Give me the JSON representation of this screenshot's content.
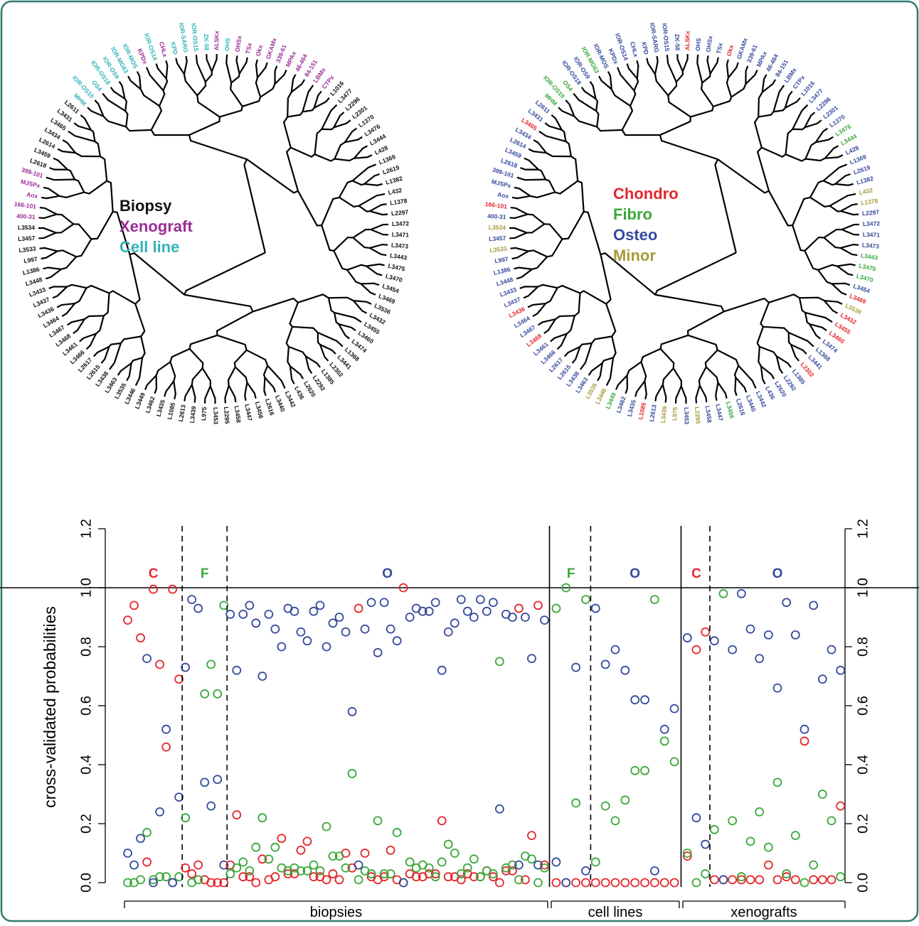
{
  "dendrograms": {
    "legend_left": [
      {
        "label": "Biopsy",
        "color": "#111111"
      },
      {
        "label": "Xenograft",
        "color": "#9b2c96"
      },
      {
        "label": "Cell line",
        "color": "#33b3b8"
      }
    ],
    "legend_right": [
      {
        "label": "Chondro",
        "color": "#e3262b"
      },
      {
        "label": "Fibro",
        "color": "#3aa83a"
      },
      {
        "label": "Osteo",
        "color": "#354a9c"
      },
      {
        "label": "Minor",
        "color": "#a69b3c"
      }
    ],
    "leaves": [
      [
        "MHM",
        "#33b3b8",
        "#3aa83a"
      ],
      [
        "IOR-OS10",
        "#33b3b8",
        "#3aa83a"
      ],
      [
        "OS4",
        "#33b3b8",
        "#3aa83a"
      ],
      [
        "IOR-OS18",
        "#33b3b8",
        "#354a9c"
      ],
      [
        "IOR-OS9",
        "#33b3b8",
        "#354a9c"
      ],
      [
        "IOR-MG63",
        "#33b3b8",
        "#3aa83a"
      ],
      [
        "IOR-MOS",
        "#33b3b8",
        "#354a9c"
      ],
      [
        "KPDx",
        "#9b2c96",
        "#354a9c"
      ],
      [
        "IOR-OS14",
        "#33b3b8",
        "#354a9c"
      ],
      [
        "CHLx",
        "#9b2c96",
        "#354a9c"
      ],
      [
        "KPD",
        "#33b3b8",
        "#354a9c"
      ],
      [
        "IOR-SARG",
        "#33b3b8",
        "#354a9c"
      ],
      [
        "IOR-OS15",
        "#33b3b8",
        "#354a9c"
      ],
      [
        "ZK-58",
        "#33b3b8",
        "#354a9c"
      ],
      [
        "ALSKx",
        "#9b2c96",
        "#e3262b"
      ],
      [
        "OHS",
        "#33b3b8",
        "#354a9c"
      ],
      [
        "OHSx",
        "#9b2c96",
        "#354a9c"
      ],
      [
        "TSx",
        "#9b2c96",
        "#354a9c"
      ],
      [
        "Okx",
        "#9b2c96",
        "#e3262b"
      ],
      [
        "GKAMx",
        "#9b2c96",
        "#354a9c"
      ],
      [
        "339-61",
        "#9b2c96",
        "#354a9c"
      ],
      [
        "MPAx",
        "#9b2c96",
        "#354a9c"
      ],
      [
        "46-464",
        "#9b2c96",
        "#354a9c"
      ],
      [
        "84-151",
        "#9b2c96",
        "#354a9c"
      ],
      [
        "LBMx",
        "#9b2c96",
        "#354a9c"
      ],
      [
        "CTPx",
        "#9b2c96",
        "#354a9c"
      ],
      [
        "L1016",
        "#111111",
        "#354a9c"
      ],
      [
        "L3477",
        "#111111",
        "#354a9c"
      ],
      [
        "L2296",
        "#111111",
        "#354a9c"
      ],
      [
        "L2301",
        "#111111",
        "#354a9c"
      ],
      [
        "L1370",
        "#111111",
        "#354a9c"
      ],
      [
        "L3476",
        "#111111",
        "#3aa83a"
      ],
      [
        "L3444",
        "#111111",
        "#3aa83a"
      ],
      [
        "L428",
        "#111111",
        "#354a9c"
      ],
      [
        "L1369",
        "#111111",
        "#354a9c"
      ],
      [
        "L2619",
        "#111111",
        "#354a9c"
      ],
      [
        "L1382",
        "#111111",
        "#354a9c"
      ],
      [
        "L432",
        "#111111",
        "#a69b3c"
      ],
      [
        "L1378",
        "#111111",
        "#a69b3c"
      ],
      [
        "L2297",
        "#111111",
        "#354a9c"
      ],
      [
        "L3472",
        "#111111",
        "#354a9c"
      ],
      [
        "L3471",
        "#111111",
        "#354a9c"
      ],
      [
        "L3473",
        "#111111",
        "#354a9c"
      ],
      [
        "L3443",
        "#111111",
        "#3aa83a"
      ],
      [
        "L3475",
        "#111111",
        "#3aa83a"
      ],
      [
        "L3470",
        "#111111",
        "#3aa83a"
      ],
      [
        "L3454",
        "#111111",
        "#354a9c"
      ],
      [
        "L3469",
        "#111111",
        "#e3262b"
      ],
      [
        "L3536",
        "#111111",
        "#a69b3c"
      ],
      [
        "L3432",
        "#111111",
        "#e3262b"
      ],
      [
        "L3455",
        "#111111",
        "#e3262b"
      ],
      [
        "L3460",
        "#111111",
        "#e3262b"
      ],
      [
        "L3474",
        "#111111",
        "#354a9c"
      ],
      [
        "L1368",
        "#111111",
        "#354a9c"
      ],
      [
        "L3441",
        "#111111",
        "#354a9c"
      ],
      [
        "L2302",
        "#111111",
        "#e3262b"
      ],
      [
        "L1385",
        "#111111",
        "#354a9c"
      ],
      [
        "L2292",
        "#111111",
        "#354a9c"
      ],
      [
        "L2620",
        "#111111",
        "#354a9c"
      ],
      [
        "L436",
        "#111111",
        "#354a9c"
      ],
      [
        "L3442",
        "#111111",
        "#354a9c"
      ],
      [
        "L3440",
        "#111111",
        "#354a9c"
      ],
      [
        "L2616",
        "#111111",
        "#354a9c"
      ],
      [
        "L3456",
        "#111111",
        "#3aa83a"
      ],
      [
        "L3447",
        "#111111",
        "#354a9c"
      ],
      [
        "L3458",
        "#111111",
        "#354a9c"
      ],
      [
        "L2295",
        "#111111",
        "#a69b3c"
      ],
      [
        "L3453",
        "#111111",
        "#354a9c"
      ],
      [
        "L975",
        "#111111",
        "#a69b3c"
      ],
      [
        "L3439",
        "#111111",
        "#a69b3c"
      ],
      [
        "L2613",
        "#111111",
        "#354a9c"
      ],
      [
        "L1085",
        "#111111",
        "#e3262b"
      ],
      [
        "L3435",
        "#111111",
        "#354a9c"
      ],
      [
        "L3462",
        "#111111",
        "#354a9c"
      ],
      [
        "L3449",
        "#111111",
        "#3aa83a"
      ],
      [
        "L3446",
        "#111111",
        "#a69b3c"
      ],
      [
        "L3535",
        "#111111",
        "#a69b3c"
      ],
      [
        "L3463",
        "#111111",
        "#354a9c"
      ],
      [
        "L3438",
        "#111111",
        "#354a9c"
      ],
      [
        "L2615",
        "#111111",
        "#354a9c"
      ],
      [
        "L2617",
        "#111111",
        "#354a9c"
      ],
      [
        "L3466",
        "#111111",
        "#354a9c"
      ],
      [
        "L3461",
        "#111111",
        "#354a9c"
      ],
      [
        "L3468",
        "#111111",
        "#e3262b"
      ],
      [
        "L3467",
        "#111111",
        "#354a9c"
      ],
      [
        "L3464",
        "#111111",
        "#354a9c"
      ],
      [
        "L3436",
        "#111111",
        "#e3262b"
      ],
      [
        "L3437",
        "#111111",
        "#354a9c"
      ],
      [
        "L3433",
        "#111111",
        "#354a9c"
      ],
      [
        "L3448",
        "#111111",
        "#354a9c"
      ],
      [
        "L1386",
        "#111111",
        "#354a9c"
      ],
      [
        "L997",
        "#111111",
        "#354a9c"
      ],
      [
        "L3533",
        "#111111",
        "#a69b3c"
      ],
      [
        "L3457",
        "#111111",
        "#354a9c"
      ],
      [
        "L3534",
        "#111111",
        "#a69b3c"
      ],
      [
        "400-31",
        "#9b2c96",
        "#354a9c"
      ],
      [
        "166-101",
        "#9b2c96",
        "#e3262b"
      ],
      [
        "Aox",
        "#9b2c96",
        "#354a9c"
      ],
      [
        "MJSPx",
        "#9b2c96",
        "#354a9c"
      ],
      [
        "399-101",
        "#9b2c96",
        "#354a9c"
      ],
      [
        "L2618",
        "#111111",
        "#354a9c"
      ],
      [
        "L3459",
        "#111111",
        "#354a9c"
      ],
      [
        "L2614",
        "#111111",
        "#354a9c"
      ],
      [
        "L3434",
        "#111111",
        "#354a9c"
      ],
      [
        "L3465",
        "#111111",
        "#e3262b"
      ],
      [
        "L3431",
        "#111111",
        "#354a9c"
      ],
      [
        "L2611",
        "#111111",
        "#354a9c"
      ]
    ]
  },
  "chart_data": {
    "type": "scatter",
    "y_label": "cross-validated probabilities",
    "ylim": [
      0,
      1.2
    ],
    "yticks": [
      {
        "value": 0,
        "label": "0.0"
      },
      0.2,
      0.4,
      0.6,
      0.8,
      {
        "value": 1,
        "label": "1.0"
      },
      1.2
    ],
    "reference_line": {
      "value": 1,
      "label": "1.0"
    },
    "sections": [
      {
        "label": "biopsies",
        "subsections": [
          {
            "label": "C",
            "color": "#e3262b",
            "series": [
              {
                "color": "#e3262b",
                "values": [
                  0.89,
                  0.94,
                  0.83,
                  0.07,
                  0.995,
                  0.74,
                  0.46,
                  0.995,
                  0.69
                ]
              },
              {
                "color": "#3aa83a",
                "values": [
                  0,
                  0,
                  0.01,
                  0.17,
                  0.01,
                  0.02,
                  0.02,
                  0,
                  0.02
                ]
              },
              {
                "color": "#354a9c",
                "values": [
                  0.1,
                  0.06,
                  0.15,
                  0.76,
                  0,
                  0.24,
                  0.52,
                  0,
                  0.29
                ]
              }
            ]
          },
          {
            "label": "F",
            "color": "#3aa83a",
            "series": [
              {
                "color": "#e3262b",
                "values": [
                  0.05,
                  0.03,
                  0.06,
                  0.01,
                  0,
                  0,
                  0
                ]
              },
              {
                "color": "#3aa83a",
                "values": [
                  0.22,
                  0,
                  0.01,
                  0.64,
                  0.74,
                  0.64,
                  0.94
                ]
              },
              {
                "color": "#354a9c",
                "values": [
                  0.73,
                  0.96,
                  0.93,
                  0.34,
                  0.26,
                  0.35,
                  0.06
                ]
              }
            ]
          },
          {
            "label": "O",
            "color": "#354a9c",
            "series": [
              {
                "color": "#e3262b",
                "values": [
                  0.06,
                  0.23,
                  0.02,
                  0.02,
                  0,
                  0.08,
                  0.01,
                  0.02,
                  0.15,
                  0.03,
                  0.03,
                  0.11,
                  0.14,
                  0.02,
                  0.02,
                  0.01,
                  0.03,
                  0.01,
                  0.1,
                  0.05,
                  0.93,
                  0.1,
                  0.02,
                  0.01,
                  0.02,
                  0.11,
                  0.01,
                  1,
                  0.03,
                  0.02,
                  0.02,
                  0.03,
                  0.03,
                  0.21,
                  0.02,
                  0.02,
                  0.01,
                  0.03,
                  0.02,
                  0.02,
                  0.04,
                  0.02,
                  0,
                  0.04,
                  0.04,
                  0.93,
                  0.01,
                  0.16,
                  0.94,
                  0.06
                ]
              },
              {
                "color": "#3aa83a",
                "values": [
                  0.03,
                  0.05,
                  0.07,
                  0.04,
                  0.12,
                  0.22,
                  0.08,
                  0.12,
                  0.05,
                  0.04,
                  0.05,
                  0.04,
                  0.04,
                  0.06,
                  0.04,
                  0.19,
                  0.09,
                  0.09,
                  0.05,
                  0.37,
                  0.01,
                  0.04,
                  0.03,
                  0.21,
                  0.03,
                  0.03,
                  0.17,
                  0,
                  0.07,
                  0.05,
                  0.06,
                  0.05,
                  0.02,
                  0.07,
                  0.13,
                  0.1,
                  0.03,
                  0.05,
                  0.08,
                  0.02,
                  0.04,
                  0.03,
                  0.75,
                  0.05,
                  0.06,
                  0.01,
                  0.09,
                  0.08,
                  0,
                  0.05
                ]
              },
              {
                "color": "#354a9c",
                "values": [
                  0.91,
                  0.72,
                  0.91,
                  0.94,
                  0.88,
                  0.7,
                  0.91,
                  0.86,
                  0.8,
                  0.93,
                  0.92,
                  0.85,
                  0.82,
                  0.92,
                  0.94,
                  0.8,
                  0.88,
                  0.9,
                  0.85,
                  0.58,
                  0.06,
                  0.86,
                  0.95,
                  0.78,
                  0.95,
                  0.86,
                  0.82,
                  0,
                  0.9,
                  0.93,
                  0.92,
                  0.92,
                  0.95,
                  0.72,
                  0.85,
                  0.88,
                  0.96,
                  0.92,
                  0.9,
                  0.96,
                  0.92,
                  0.95,
                  0.25,
                  0.91,
                  0.9,
                  0.06,
                  0.9,
                  0.76,
                  0.06,
                  0.89
                ]
              }
            ]
          }
        ]
      },
      {
        "label": "cell lines",
        "subsections": [
          {
            "label": "F",
            "color": "#3aa83a",
            "series": [
              {
                "color": "#e3262b",
                "values": [
                  0,
                  0,
                  0,
                  0
                ]
              },
              {
                "color": "#3aa83a",
                "values": [
                  0.93,
                  1,
                  0.27,
                  0.96
                ]
              },
              {
                "color": "#354a9c",
                "values": [
                  0.07,
                  0,
                  0.73,
                  0.04
                ]
              }
            ]
          },
          {
            "label": "O",
            "color": "#354a9c",
            "series": [
              {
                "color": "#e3262b",
                "values": [
                  0,
                  0,
                  0,
                  0,
                  0,
                  0,
                  0,
                  0,
                  0
                ]
              },
              {
                "color": "#3aa83a",
                "values": [
                  0.07,
                  0.26,
                  0.21,
                  0.28,
                  0.38,
                  0.38,
                  0.96,
                  0.48,
                  0.41
                ]
              },
              {
                "color": "#354a9c",
                "values": [
                  0.93,
                  0.74,
                  0.79,
                  0.72,
                  0.62,
                  0.62,
                  0.04,
                  0.52,
                  0.59
                ]
              }
            ]
          }
        ]
      },
      {
        "label": "xenografts",
        "subsections": [
          {
            "label": "C",
            "color": "#e3262b",
            "series": [
              {
                "color": "#e3262b",
                "values": [
                  0.09,
                  0.79,
                  0.85
                ]
              },
              {
                "color": "#3aa83a",
                "values": [
                  0.1,
                  0,
                  0.03
                ]
              },
              {
                "color": "#354a9c",
                "values": [
                  0.83,
                  0.22,
                  0.13
                ]
              }
            ]
          },
          {
            "label": "O",
            "color": "#354a9c",
            "series": [
              {
                "color": "#e3262b",
                "values": [
                  0.01,
                  0.01,
                  0.01,
                  0.01,
                  0.01,
                  0.01,
                  0.06,
                  0.01,
                  0.02,
                  0.01,
                  0.48,
                  0.01,
                  0.01,
                  0.01,
                  0.26
                ]
              },
              {
                "color": "#3aa83a",
                "values": [
                  0.18,
                  0.98,
                  0.21,
                  0.02,
                  0.14,
                  0.24,
                  0.12,
                  0.34,
                  0.03,
                  0.16,
                  0,
                  0.06,
                  0.3,
                  0.21,
                  0.02
                ]
              },
              {
                "color": "#354a9c",
                "values": [
                  0.82,
                  0.01,
                  0.79,
                  0.98,
                  0.86,
                  0.76,
                  0.84,
                  0.66,
                  0.95,
                  0.84,
                  0.52,
                  0.94,
                  0.69,
                  0.79,
                  0.72
                ]
              }
            ]
          }
        ]
      }
    ]
  }
}
